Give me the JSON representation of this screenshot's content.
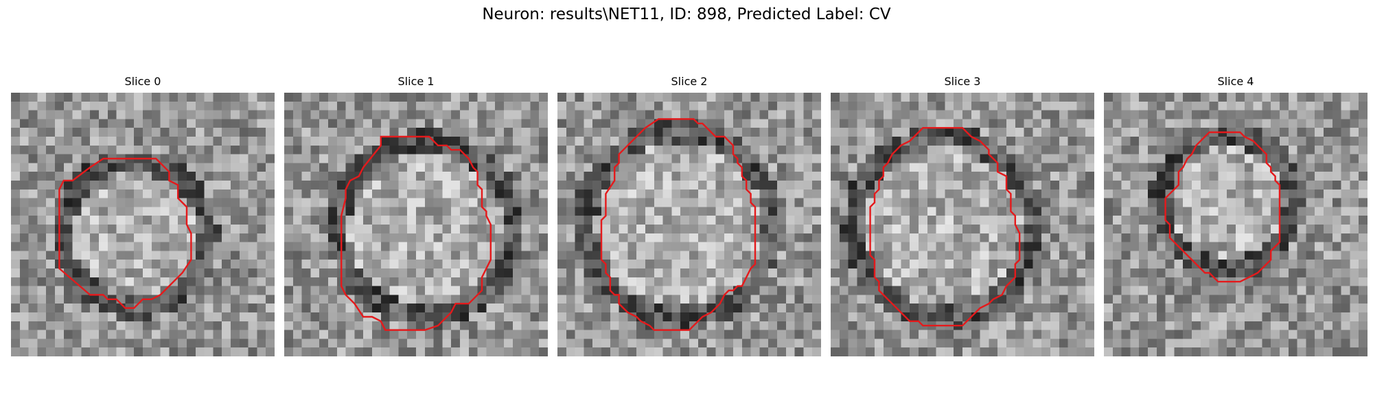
{
  "figure": {
    "title": "Neuron: results\\NET11, ID: 898, Predicted Label: CV",
    "overlay_color": "#e41a1c"
  },
  "panels": [
    {
      "title": "Slice 0",
      "contour": [
        [
          13.5,
          7.5
        ],
        [
          16.5,
          7.5
        ],
        [
          18,
          9
        ],
        [
          18,
          10
        ],
        [
          19,
          10.5
        ],
        [
          19,
          12
        ],
        [
          20,
          13
        ],
        [
          20,
          15
        ],
        [
          20.5,
          16
        ],
        [
          20.5,
          19
        ],
        [
          19.5,
          20.5
        ],
        [
          17,
          23
        ],
        [
          16,
          23.5
        ],
        [
          15,
          23.5
        ],
        [
          14,
          24.5
        ],
        [
          13,
          24.5
        ],
        [
          12,
          23.5
        ],
        [
          11,
          23.5
        ],
        [
          10.5,
          23
        ],
        [
          9,
          23
        ],
        [
          5.5,
          20
        ],
        [
          5.5,
          11
        ],
        [
          6,
          10
        ],
        [
          7,
          10
        ],
        [
          9,
          8.5
        ],
        [
          10.5,
          7.5
        ]
      ]
    },
    {
      "title": "Slice 1",
      "contour": [
        [
          11,
          5
        ],
        [
          16.5,
          5
        ],
        [
          17.5,
          6
        ],
        [
          18.5,
          6
        ],
        [
          19,
          6.5
        ],
        [
          20,
          6.5
        ],
        [
          21,
          7.5
        ],
        [
          21.5,
          8.5
        ],
        [
          22,
          9
        ],
        [
          22,
          10.5
        ],
        [
          22.5,
          11
        ],
        [
          22.5,
          12
        ],
        [
          22.5,
          13
        ],
        [
          23,
          13.5
        ],
        [
          23,
          14
        ],
        [
          23.5,
          15
        ],
        [
          23.5,
          19
        ],
        [
          22.5,
          21
        ],
        [
          22.5,
          22.5
        ],
        [
          21.5,
          23.5
        ],
        [
          21,
          24
        ],
        [
          19.5,
          24
        ],
        [
          19,
          25
        ],
        [
          17.5,
          26.5
        ],
        [
          16,
          27
        ],
        [
          11.5,
          27
        ],
        [
          11,
          26
        ],
        [
          10,
          25.5
        ],
        [
          9,
          25.5
        ],
        [
          8,
          24
        ],
        [
          7,
          23
        ],
        [
          6.5,
          22
        ],
        [
          6.5,
          14
        ],
        [
          7,
          12
        ],
        [
          7,
          11
        ],
        [
          7.5,
          10
        ],
        [
          8.5,
          9.5
        ],
        [
          9,
          8.5
        ],
        [
          11,
          6
        ]
      ]
    },
    {
      "title": "Slice 2",
      "contour": [
        [
          11.5,
          3
        ],
        [
          15.5,
          3
        ],
        [
          16,
          3.5
        ],
        [
          16.5,
          3.5
        ],
        [
          18,
          5
        ],
        [
          19,
          5
        ],
        [
          19.5,
          5.5
        ],
        [
          20,
          6
        ],
        [
          20,
          7
        ],
        [
          20.5,
          7.5
        ],
        [
          20.5,
          8
        ],
        [
          21,
          8.5
        ],
        [
          21,
          9.5
        ],
        [
          21.5,
          10
        ],
        [
          21.5,
          11
        ],
        [
          22,
          11.5
        ],
        [
          22,
          12.5
        ],
        [
          22.5,
          13
        ],
        [
          22.5,
          19.5
        ],
        [
          22,
          20
        ],
        [
          21.5,
          21
        ],
        [
          21,
          22
        ],
        [
          20.5,
          22
        ],
        [
          20,
          22.5
        ],
        [
          19.5,
          22.5
        ],
        [
          19,
          23
        ],
        [
          18.5,
          24
        ],
        [
          17.5,
          25
        ],
        [
          16.5,
          25.5
        ],
        [
          16,
          26
        ],
        [
          15.5,
          26.5
        ],
        [
          15,
          27
        ],
        [
          11,
          27
        ],
        [
          10.5,
          26.5
        ],
        [
          9.5,
          26
        ],
        [
          9,
          25.5
        ],
        [
          8,
          25
        ],
        [
          7.5,
          24.5
        ],
        [
          7,
          24
        ],
        [
          7,
          23
        ],
        [
          6.5,
          23
        ],
        [
          6,
          22.5
        ],
        [
          6,
          21
        ],
        [
          5.5,
          20.5
        ],
        [
          5.5,
          19.5
        ],
        [
          5,
          19
        ],
        [
          5,
          14.5
        ],
        [
          5.5,
          14
        ],
        [
          5.5,
          11.5
        ],
        [
          6.5,
          10
        ],
        [
          6.5,
          8.5
        ],
        [
          7,
          8
        ],
        [
          7,
          7
        ],
        [
          7.5,
          6.5
        ],
        [
          8,
          6
        ],
        [
          8.5,
          5.5
        ],
        [
          9,
          5
        ],
        [
          10,
          4
        ],
        [
          11.5,
          3
        ]
      ]
    },
    {
      "title": "Slice 3",
      "contour": [
        [
          10.5,
          4
        ],
        [
          15,
          4
        ],
        [
          15.5,
          4.5
        ],
        [
          16,
          5
        ],
        [
          17,
          5.5
        ],
        [
          18,
          6.5
        ],
        [
          18,
          7
        ],
        [
          18.5,
          7.5
        ],
        [
          19,
          8
        ],
        [
          19,
          9
        ],
        [
          20,
          9.5
        ],
        [
          20,
          11
        ],
        [
          20.5,
          11.5
        ],
        [
          20.5,
          13.5
        ],
        [
          21,
          14
        ],
        [
          21,
          15
        ],
        [
          21.5,
          16
        ],
        [
          21.5,
          19
        ],
        [
          21,
          19.5
        ],
        [
          21,
          21
        ],
        [
          20,
          22
        ],
        [
          19.5,
          23
        ],
        [
          18.5,
          23.5
        ],
        [
          18,
          24
        ],
        [
          17,
          24.5
        ],
        [
          16,
          25.5
        ],
        [
          15.5,
          26
        ],
        [
          15,
          26.5
        ],
        [
          13,
          26.5
        ],
        [
          12,
          26.5
        ],
        [
          10.5,
          26.5
        ],
        [
          10,
          26
        ],
        [
          9,
          26
        ],
        [
          8,
          25
        ],
        [
          7,
          24
        ],
        [
          6.5,
          23.5
        ],
        [
          6,
          23
        ],
        [
          5.5,
          22.5
        ],
        [
          5.5,
          21.5
        ],
        [
          5,
          21
        ],
        [
          5,
          19
        ],
        [
          4.5,
          18.5
        ],
        [
          4.5,
          13
        ],
        [
          5,
          12.5
        ],
        [
          5,
          11.5
        ],
        [
          5.5,
          11
        ],
        [
          5.5,
          10
        ],
        [
          6,
          9.5
        ],
        [
          6,
          8.5
        ],
        [
          6.5,
          8
        ],
        [
          7,
          7
        ],
        [
          7.5,
          6.5
        ],
        [
          8,
          6
        ],
        [
          9,
          5.5
        ],
        [
          9.5,
          5
        ],
        [
          10.5,
          4
        ]
      ]
    },
    {
      "title": "Slice 4",
      "contour": [
        [
          13,
          4.5
        ],
        [
          15.5,
          4.5
        ],
        [
          16,
          5
        ],
        [
          17,
          5.5
        ],
        [
          17.5,
          6
        ],
        [
          18,
          6.5
        ],
        [
          18.5,
          7
        ],
        [
          18.5,
          8
        ],
        [
          19,
          8.5
        ],
        [
          19,
          9
        ],
        [
          19.5,
          9.5
        ],
        [
          19.5,
          10
        ],
        [
          20,
          10.5
        ],
        [
          20,
          15
        ],
        [
          20,
          16
        ],
        [
          20,
          17
        ],
        [
          19.5,
          17.5
        ],
        [
          19,
          18
        ],
        [
          19,
          19
        ],
        [
          18.5,
          19.5
        ],
        [
          18,
          20
        ],
        [
          17.5,
          20.5
        ],
        [
          16.5,
          21
        ],
        [
          15.5,
          21.5
        ],
        [
          13,
          21.5
        ],
        [
          12.5,
          21
        ],
        [
          12,
          20.5
        ],
        [
          11.5,
          20.5
        ],
        [
          8.5,
          17.5
        ],
        [
          8,
          17
        ],
        [
          7.5,
          16.5
        ],
        [
          7.5,
          15
        ],
        [
          7,
          14.5
        ],
        [
          7,
          12
        ],
        [
          7.5,
          11.5
        ],
        [
          8,
          11
        ],
        [
          8.5,
          10.5
        ],
        [
          8.5,
          9
        ],
        [
          9,
          8.5
        ],
        [
          9.5,
          7.5
        ],
        [
          10,
          7
        ],
        [
          10.5,
          6
        ],
        [
          11,
          5.5
        ],
        [
          11.5,
          5
        ],
        [
          12,
          4.5
        ]
      ]
    }
  ]
}
